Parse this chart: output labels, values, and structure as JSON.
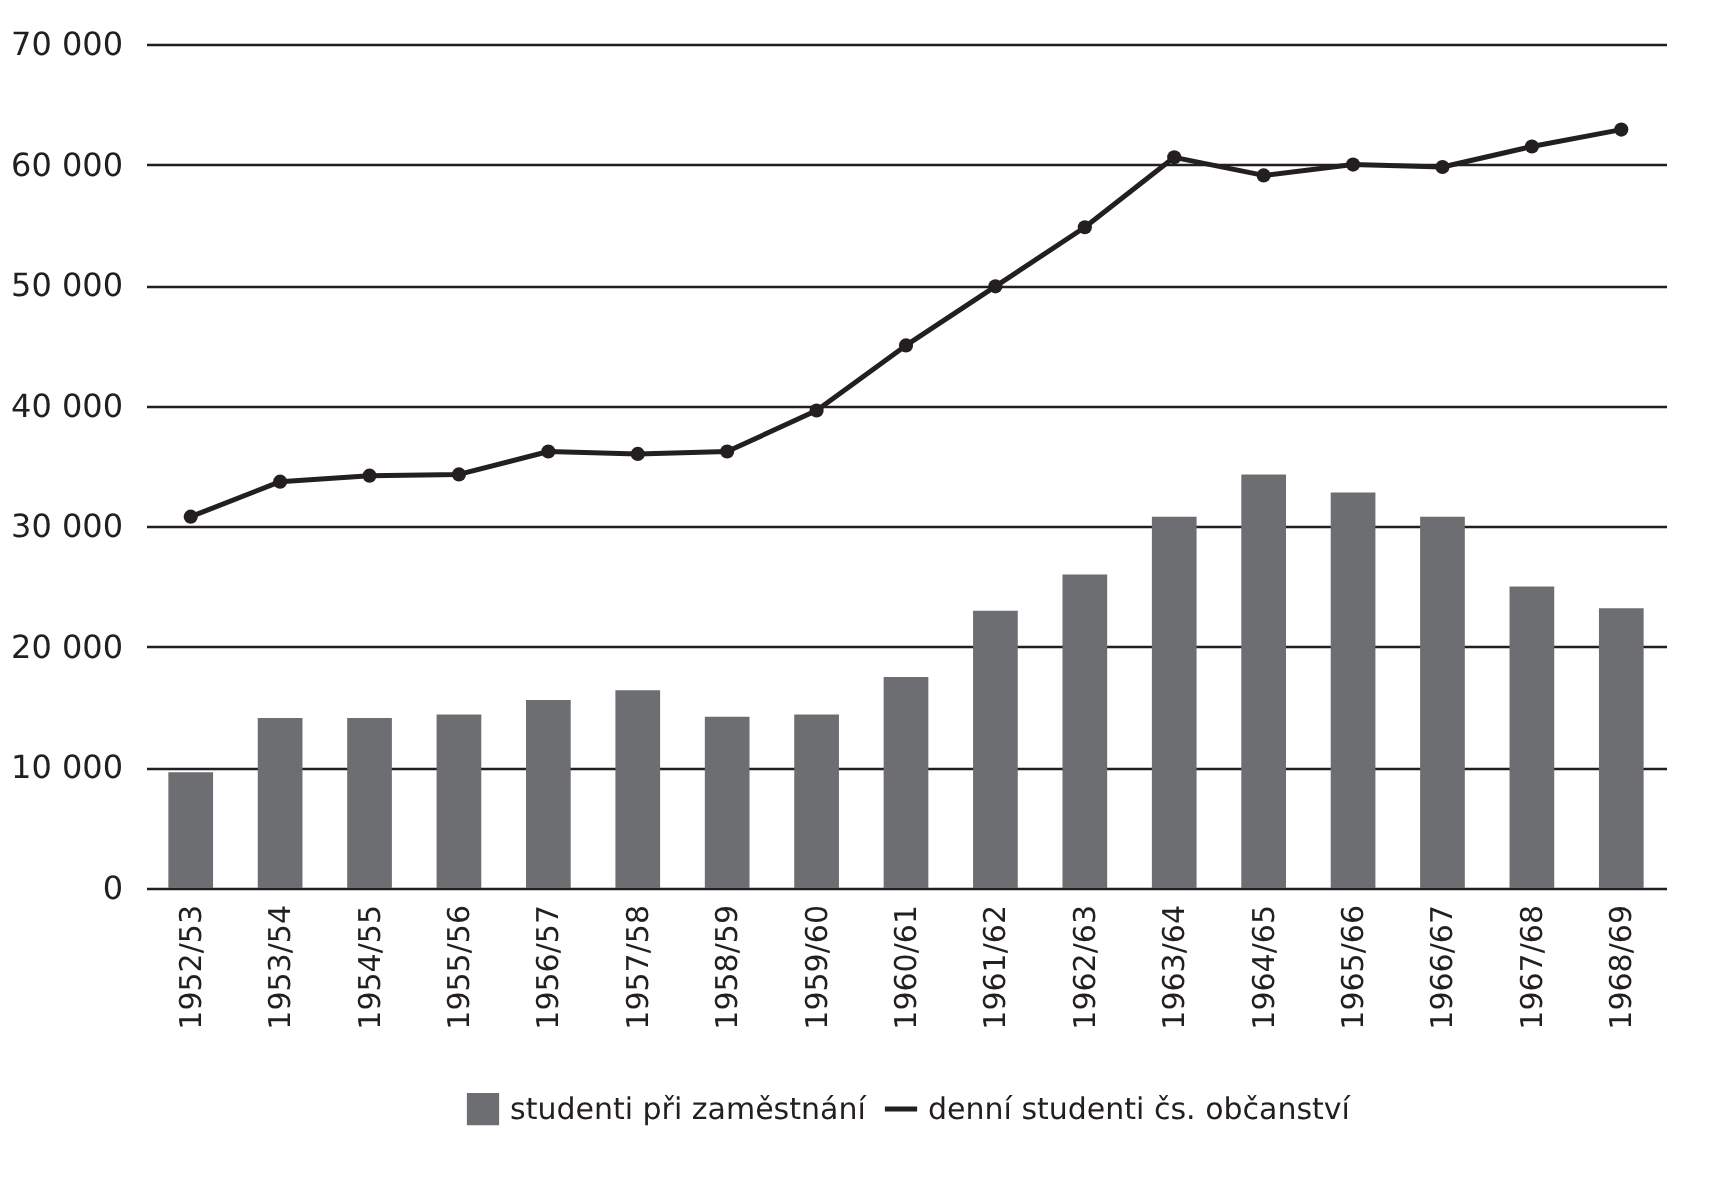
{
  "chart_data": {
    "type": "bar",
    "categories": [
      "1952/53",
      "1953/54",
      "1954/55",
      "1955/56",
      "1956/57",
      "1957/58",
      "1958/59",
      "1959/60",
      "1960/61",
      "1961/62",
      "1962/63",
      "1963/64",
      "1964/65",
      "1965/66",
      "1966/67",
      "1967/68",
      "1968/69"
    ],
    "series": [
      {
        "name": "studenti při zaměstnání",
        "color": "#6d6e71",
        "values": [
          9600,
          14100,
          14100,
          14400,
          15600,
          16400,
          14200,
          14400,
          17500,
          23000,
          26000,
          30800,
          34300,
          32800,
          30800,
          25000,
          23200
        ]
      },
      {
        "name": "denní studenti čs. občanství",
        "type": "line",
        "color": "#231f20",
        "marker": "circle",
        "line_style": "solid",
        "values": [
          30800,
          33700,
          34200,
          34300,
          36200,
          36000,
          36200,
          39600,
          45000,
          49900,
          54800,
          60600,
          59100,
          60000,
          59800,
          61500,
          62900
        ]
      }
    ],
    "ylim": [
      0,
      70000
    ],
    "yticks": [
      {
        "value": 0,
        "label": "0"
      },
      {
        "value": 10000,
        "label": "10 000"
      },
      {
        "value": 20000,
        "label": "20 000"
      },
      {
        "value": 30000,
        "label": "30 000"
      },
      {
        "value": 40000,
        "label": "40 000"
      },
      {
        "value": 50000,
        "label": "50 000"
      },
      {
        "value": 60000,
        "label": "60 000"
      },
      {
        "value": 70000,
        "label": "70 000"
      }
    ],
    "grid": "y",
    "legend": "bottom"
  }
}
